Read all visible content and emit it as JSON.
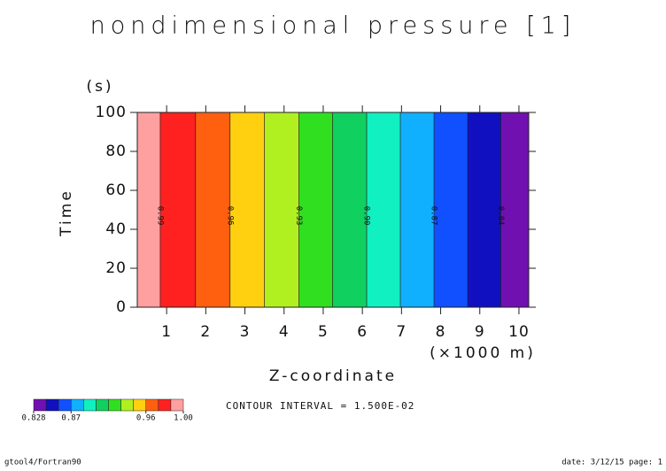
{
  "chart_data": {
    "type": "contour",
    "title": "nondimensional pressure [1]",
    "x_label": "Z-coordinate",
    "x_unit": "(×1000 m)",
    "y_label": "Time",
    "y_unit": "(s)",
    "xlim": [
      0.25,
      10.25
    ],
    "xticks": [
      1,
      2,
      3,
      4,
      5,
      6,
      7,
      8,
      9,
      10
    ],
    "ylim": [
      0,
      100
    ],
    "yticks": [
      0,
      20,
      40,
      60,
      80,
      100
    ],
    "levels": [
      0.99,
      0.975,
      0.96,
      0.945,
      0.93,
      0.915,
      0.9,
      0.885,
      0.87,
      0.855,
      0.84
    ],
    "level_x": [
      0.836,
      1.739,
      2.62,
      3.5,
      4.38,
      5.24,
      6.11,
      6.97,
      7.83,
      8.69,
      9.54
    ],
    "level_labels": [
      "0.99",
      null,
      "0.96",
      null,
      "0.93",
      null,
      "0.90",
      null,
      "0.87",
      null,
      "0.84"
    ],
    "band_colors": [
      "#ffa0a0",
      "#ff2020",
      "#ff6010",
      "#ffd010",
      "#b0f020",
      "#30e020",
      "#10d060",
      "#10f0c0",
      "#10b0ff",
      "#1050ff",
      "#1010c0",
      "#7010b0"
    ],
    "colorbar_lim": [
      0.828,
      1.0
    ],
    "colorbar_ticks": [
      {
        "value": 0.828,
        "label": "0.828"
      },
      {
        "value": 0.87,
        "label": "0.87"
      },
      {
        "value": 0.96,
        "label": "0.96"
      },
      {
        "value": 1.0,
        "label": "1.00"
      }
    ],
    "contour_interval": "CONTOUR INTERVAL = 1.500E-02",
    "footer_left": "gtool4/Fortran90",
    "footer_right": "date: 3/12/15 page: 1"
  }
}
